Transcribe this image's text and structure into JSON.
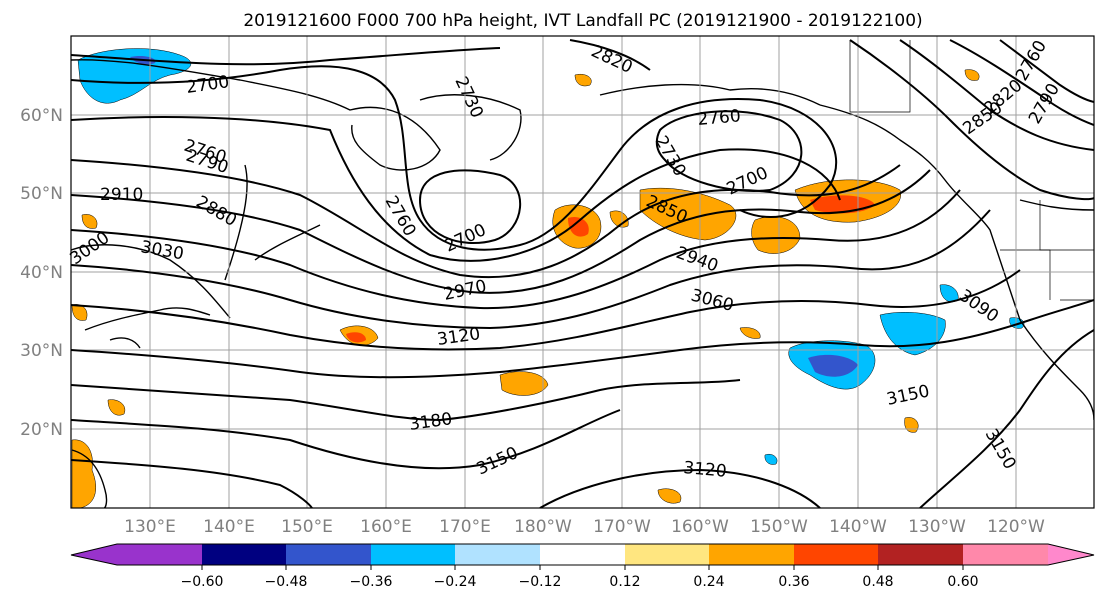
{
  "figure": {
    "title": "2019121600 F000 700 hPa height, IVT Landfall PC (2019121900 - 2019122100)"
  },
  "map": {
    "latitude_labels": [
      "60°N",
      "50°N",
      "40°N",
      "30°N",
      "20°N"
    ],
    "longitude_labels": [
      "130°E",
      "140°E",
      "150°E",
      "160°E",
      "170°E",
      "180°W",
      "170°W",
      "160°W",
      "150°W",
      "140°W",
      "130°W",
      "120°W"
    ],
    "contour_labels": [
      "2820",
      "2700",
      "2730",
      "2760",
      "2790",
      "2910",
      "2880",
      "3000",
      "3030",
      "2760",
      "2700",
      "2730",
      "2850",
      "2700",
      "2760",
      "2940",
      "2970",
      "3060",
      "3120",
      "3090",
      "3150",
      "3180",
      "3150",
      "3120",
      "3150",
      "2760",
      "2820",
      "2850",
      "2790"
    ],
    "contour_line_color": "#000000",
    "land_outline_color": "#000000",
    "grid_color": "#a0a0a0"
  },
  "colorbar": {
    "extend": "both",
    "tick_labels": [
      "−0.60",
      "−0.48",
      "−0.36",
      "−0.24",
      "−0.12",
      "0.12",
      "0.24",
      "0.36",
      "0.48",
      "0.60"
    ],
    "colors": [
      "#9933cc",
      "#000080",
      "#3355cc",
      "#00bfff",
      "#b0e2ff",
      "#ffffff",
      "#ffe680",
      "#ffa500",
      "#ff4500",
      "#b22222",
      "#ff88aa",
      "#ff88cc"
    ]
  }
}
